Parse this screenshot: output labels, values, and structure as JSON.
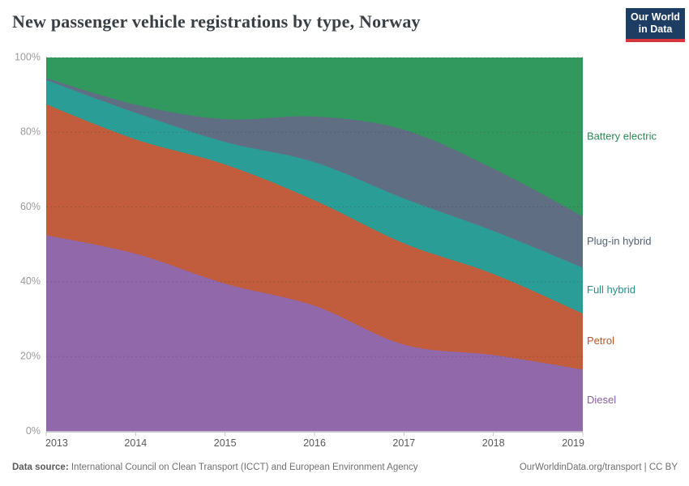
{
  "header": {
    "title": "New passenger vehicle registrations by type, Norway",
    "logo": {
      "line1": "Our World",
      "line2": "in Data"
    }
  },
  "footer": {
    "source_label": "Data source:",
    "source_text": " International Council on Clean Transport (ICCT) and European Environment Agency",
    "credit_link": "OurWorldinData.org/transport",
    "credit_suffix": " | CC BY"
  },
  "colors": {
    "logo_bg": "#1d3d63",
    "logo_stripe": "#d7363c",
    "axis": "#c4c4c4",
    "grid": "rgba(45,45,45,0.22)"
  },
  "chart_data": {
    "type": "area",
    "stacked": true,
    "normalized": "percent",
    "title": "New passenger vehicle registrations by type, Norway",
    "x": [
      2013,
      2014,
      2015,
      2016,
      2017,
      2018,
      2019
    ],
    "x_tick_labels": [
      "2013",
      "2014",
      "2015",
      "2016",
      "2017",
      "2018",
      "2019"
    ],
    "y_ticks": [
      0,
      20,
      40,
      60,
      80,
      100
    ],
    "y_tick_labels": [
      "0%",
      "20%",
      "40%",
      "60%",
      "80%",
      "100%"
    ],
    "ylim": [
      0,
      100
    ],
    "grid": "dashed-horizontal",
    "legend_position": "right-inline",
    "series": [
      {
        "name": "Diesel",
        "color": "#9168aa",
        "label_color": "#8960a5",
        "values": [
          52.5,
          47.5,
          39.5,
          33.6,
          23.2,
          20.4,
          16.5
        ]
      },
      {
        "name": "Petrol",
        "color": "#c15c3c",
        "label_color": "#c0532f",
        "values": [
          35.0,
          30.6,
          31.9,
          28.2,
          27.1,
          21.7,
          15.0
        ]
      },
      {
        "name": "Full hybrid",
        "color": "#2a9e96",
        "label_color": "#23908a",
        "values": [
          6.5,
          7.1,
          6.0,
          10.2,
          12.0,
          11.5,
          12.3
        ]
      },
      {
        "name": "Plug-in hybrid",
        "color": "#5f6e83",
        "label_color": "#526176",
        "values": [
          0.5,
          2.2,
          6.1,
          12.2,
          18.4,
          16.7,
          13.7
        ]
      },
      {
        "name": "Battery electric",
        "color": "#32995e",
        "label_color": "#2c8a55",
        "values": [
          5.5,
          12.6,
          16.5,
          15.8,
          19.3,
          29.7,
          42.5
        ]
      }
    ]
  }
}
